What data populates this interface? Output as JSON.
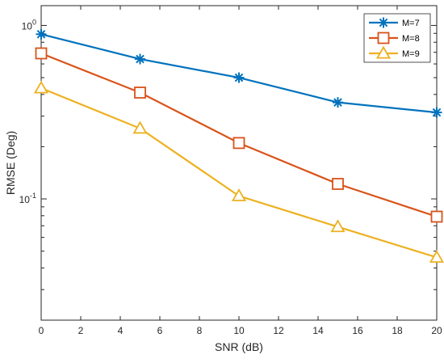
{
  "chart_data": {
    "type": "line",
    "xlabel": "SNR (dB)",
    "ylabel": "RMSE (Deg)",
    "x": [
      0,
      5,
      10,
      15,
      20
    ],
    "xlim": [
      0,
      20
    ],
    "xticks": [
      0,
      2,
      4,
      6,
      8,
      10,
      12,
      14,
      16,
      18,
      20
    ],
    "xtick_labels": [
      "0",
      "2",
      "4",
      "6",
      "8",
      "10",
      "12",
      "14",
      "16",
      "18",
      "20"
    ],
    "ylim": [
      0.02,
      1.3
    ],
    "yscale": "log",
    "yticks": [
      {
        "value": 1,
        "base": "10",
        "exp": "0"
      },
      {
        "value": 0.1,
        "base": "10",
        "exp": "-1"
      }
    ],
    "grid": false,
    "legend_position": "top-right",
    "series": [
      {
        "name": "M=7",
        "marker": "asterisk",
        "color": "#0072BD",
        "values": [
          0.89,
          0.64,
          0.5,
          0.36,
          0.315
        ]
      },
      {
        "name": "M=8",
        "marker": "square",
        "color": "#D95319",
        "values": [
          0.69,
          0.41,
          0.21,
          0.122,
          0.079
        ]
      },
      {
        "name": "M=9",
        "marker": "triangle",
        "color": "#EDB120",
        "values": [
          0.435,
          0.255,
          0.104,
          0.069,
          0.046
        ]
      }
    ]
  }
}
